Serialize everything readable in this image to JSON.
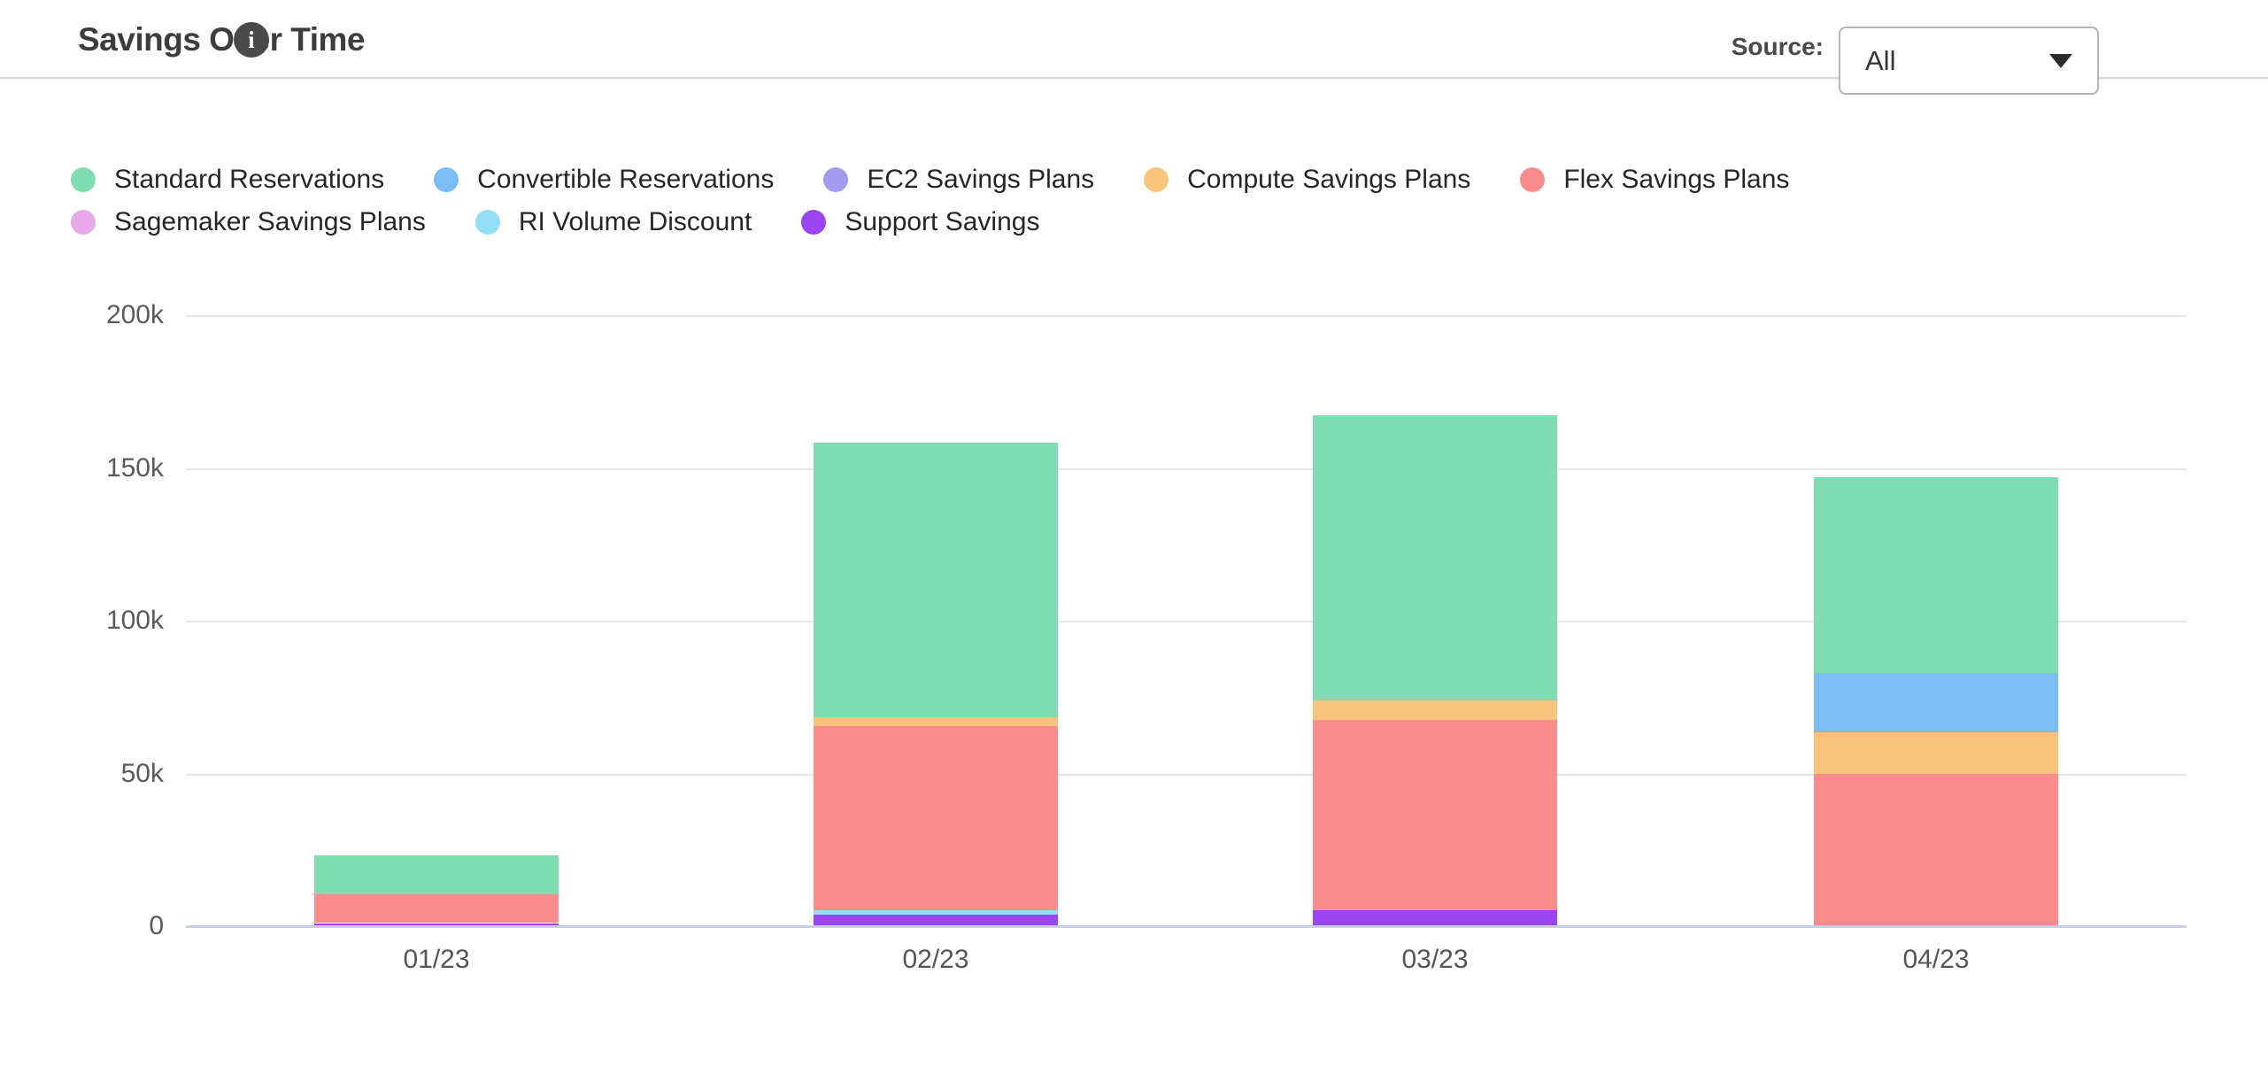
{
  "header": {
    "title": "Savings Over Time",
    "info_icon_glyph": "i",
    "source_label": "Source:",
    "source_value": "All"
  },
  "legend": {
    "items": [
      {
        "label": "Standard Reservations",
        "color": "#80DDB1"
      },
      {
        "label": "Convertible Reservations",
        "color": "#7CBCF7"
      },
      {
        "label": "EC2 Savings Plans",
        "color": "#A49AF0"
      },
      {
        "label": "Compute Savings Plans",
        "color": "#F8C57E"
      },
      {
        "label": "Flex Savings Plans",
        "color": "#FB8C8C"
      },
      {
        "label": "Sagemaker Savings Plans",
        "color": "#E7A9EA"
      },
      {
        "label": "RI Volume Discount",
        "color": "#92DFF6"
      },
      {
        "label": "Support Savings",
        "color": "#9B45F2"
      }
    ]
  },
  "chart_data": {
    "type": "bar",
    "stacked": true,
    "title": "Savings Over Time",
    "xlabel": "",
    "ylabel": "",
    "ylim": [
      0,
      200000
    ],
    "grid": true,
    "legend_position": "top",
    "categories": [
      "01/23",
      "02/23",
      "03/23",
      "04/23"
    ],
    "y_ticks": [
      {
        "value": 0,
        "label": "0"
      },
      {
        "value": 50000,
        "label": "50k"
      },
      {
        "value": 100000,
        "label": "100k"
      },
      {
        "value": 150000,
        "label": "150k"
      },
      {
        "value": 200000,
        "label": "200k"
      }
    ],
    "series_stack_order": "bottom_to_top",
    "series": [
      {
        "name": "Support Savings",
        "color": "#9B45F2",
        "values": [
          1000,
          3900,
          5100,
          0
        ]
      },
      {
        "name": "RI Volume Discount",
        "color": "#92DFF6",
        "values": [
          0,
          1300,
          0,
          0
        ]
      },
      {
        "name": "Sagemaker Savings Plans",
        "color": "#E7A9EA",
        "values": [
          0,
          0,
          0,
          0
        ]
      },
      {
        "name": "Flex Savings Plans",
        "color": "#FB8C8C",
        "values": [
          9400,
          60200,
          62500,
          49800
        ]
      },
      {
        "name": "Compute Savings Plans",
        "color": "#F8C57E",
        "values": [
          0,
          2900,
          6400,
          13600
        ]
      },
      {
        "name": "EC2 Savings Plans",
        "color": "#A49AF0",
        "values": [
          0,
          0,
          0,
          0
        ]
      },
      {
        "name": "Convertible Reservations",
        "color": "#7CBCF7",
        "values": [
          0,
          0,
          0,
          19500
        ]
      },
      {
        "name": "Standard Reservations",
        "color": "#80DDB1",
        "values": [
          12900,
          90100,
          93400,
          64100
        ]
      }
    ],
    "totals": [
      23300,
      158400,
      167400,
      147000
    ]
  }
}
